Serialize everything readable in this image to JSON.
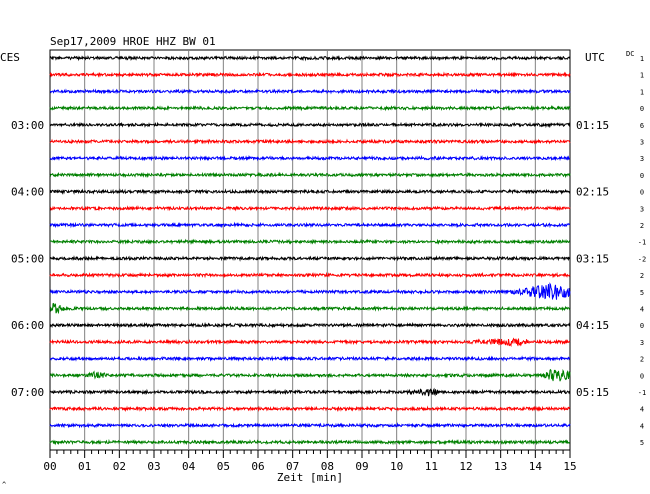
{
  "chart_data": {
    "type": "line",
    "title": "Sep17,2009   HROE HHZ BW 01",
    "left_axis_label": "CES",
    "right_axis_label": "UTC",
    "dc_label": "DC",
    "xlabel": "Zeit [min]",
    "x_ticks": [
      "00",
      "01",
      "02",
      "03",
      "04",
      "05",
      "06",
      "07",
      "08",
      "09",
      "10",
      "11",
      "12",
      "13",
      "14",
      "15"
    ],
    "xlim": [
      0,
      15
    ],
    "left_time_labels": [
      {
        "trace": 4,
        "label": "03:00"
      },
      {
        "trace": 8,
        "label": "04:00"
      },
      {
        "trace": 12,
        "label": "05:00"
      },
      {
        "trace": 16,
        "label": "06:00"
      },
      {
        "trace": 20,
        "label": "07:00"
      }
    ],
    "right_time_labels": [
      {
        "trace": 4,
        "label": "01:15"
      },
      {
        "trace": 8,
        "label": "02:15"
      },
      {
        "trace": 12,
        "label": "03:15"
      },
      {
        "trace": 16,
        "label": "04:15"
      },
      {
        "trace": 20,
        "label": "05:15"
      }
    ],
    "trace_colors": [
      "#000000",
      "#ff0000",
      "#0000ff",
      "#008000"
    ],
    "dc_values": [
      "1",
      "1",
      "1",
      "0",
      "6",
      "3",
      "3",
      "0",
      "0",
      "3",
      "2",
      "-1",
      "-2",
      "2",
      "5",
      "4",
      "0",
      "3",
      "2",
      "0",
      "-1",
      "4",
      "4",
      "5"
    ],
    "events": [
      {
        "trace": 14,
        "start_min": 13.2,
        "end_min": 15.0,
        "peak_min": 14.6,
        "amplitude": 8
      },
      {
        "trace": 15,
        "start_min": 0.0,
        "end_min": 0.4,
        "peak_min": 0.1,
        "amplitude": 4
      },
      {
        "trace": 17,
        "start_min": 12.0,
        "end_min": 13.8,
        "peak_min": 13.3,
        "amplitude": 3
      },
      {
        "trace": 19,
        "start_min": 1.0,
        "end_min": 1.6,
        "peak_min": 1.3,
        "amplitude": 2.5
      },
      {
        "trace": 19,
        "start_min": 14.2,
        "end_min": 15.0,
        "peak_min": 14.5,
        "amplitude": 6
      },
      {
        "trace": 20,
        "start_min": 10.3,
        "end_min": 11.2,
        "peak_min": 10.9,
        "amplitude": 3
      }
    ],
    "bottom_left_mark": "^"
  }
}
